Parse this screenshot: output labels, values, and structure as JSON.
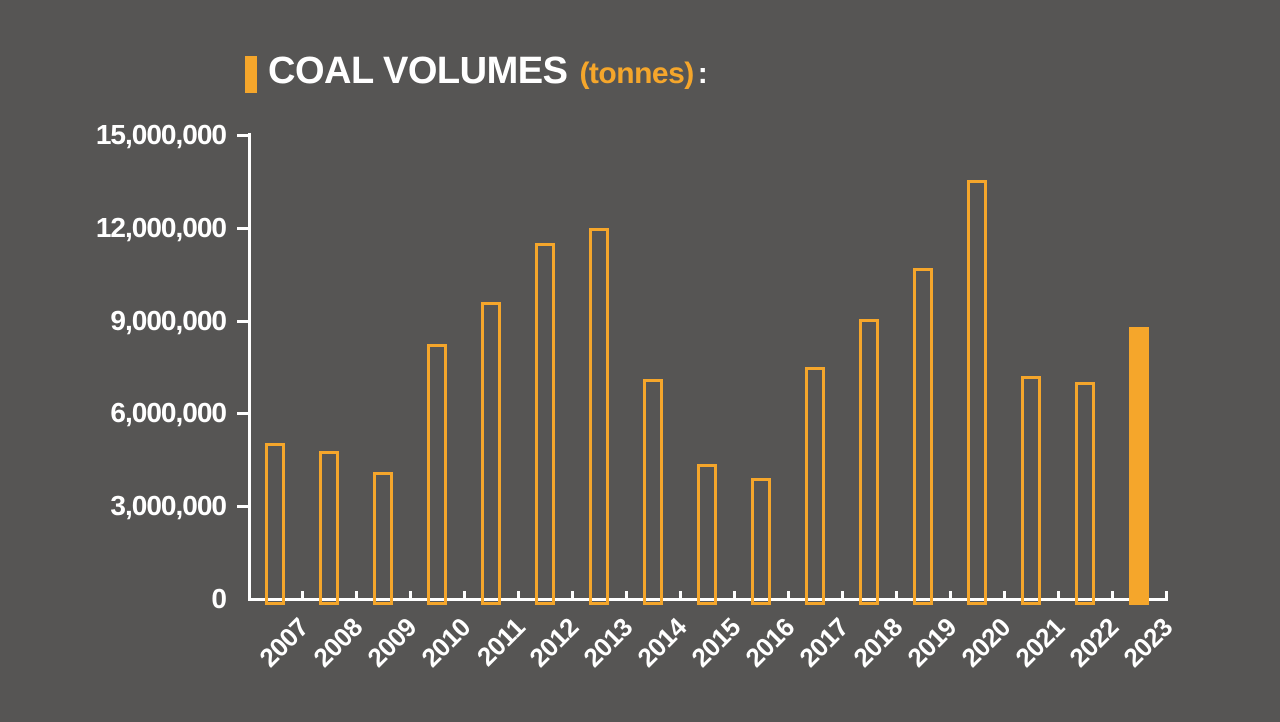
{
  "page": {
    "background_color": "#565554",
    "text_color": "#ffffff"
  },
  "title": {
    "main": "COAL VOLUMES",
    "unit": "(tonnes)",
    "suffix": ":",
    "marker_color": "#F5A62B"
  },
  "chart_data": {
    "type": "bar",
    "title": "COAL VOLUMES (tonnes)",
    "xlabel": "",
    "ylabel": "",
    "categories": [
      "2007",
      "2008",
      "2009",
      "2010",
      "2011",
      "2012",
      "2013",
      "2014",
      "2015",
      "2016",
      "2017",
      "2018",
      "2019",
      "2020",
      "2021",
      "2022",
      "2023"
    ],
    "values": [
      5050000,
      4800000,
      4100000,
      8250000,
      9600000,
      11500000,
      12000000,
      7100000,
      4350000,
      3900000,
      7500000,
      9050000,
      10700000,
      13550000,
      7200000,
      7000000,
      8800000
    ],
    "bar_style": "hollow-outline",
    "highlight_category": "2023",
    "highlight_index": 16,
    "highlight_style": "solid-fill",
    "bar_color": "#F5A62B",
    "axis_color": "#ffffff",
    "ylim": [
      0,
      15000000
    ],
    "ytick_step": 3000000,
    "yticks": [
      {
        "label": "15,000,000",
        "value": 15000000
      },
      {
        "label": "12,000,000",
        "value": 12000000
      },
      {
        "label": "9,000,000",
        "value": 9000000
      },
      {
        "label": "6,000,000",
        "value": 6000000
      },
      {
        "label": "3,000,000",
        "value": 3000000
      },
      {
        "label": "0",
        "value": 0
      }
    ],
    "grid": false,
    "legend": false,
    "xlabel_rotation_deg": -45
  }
}
